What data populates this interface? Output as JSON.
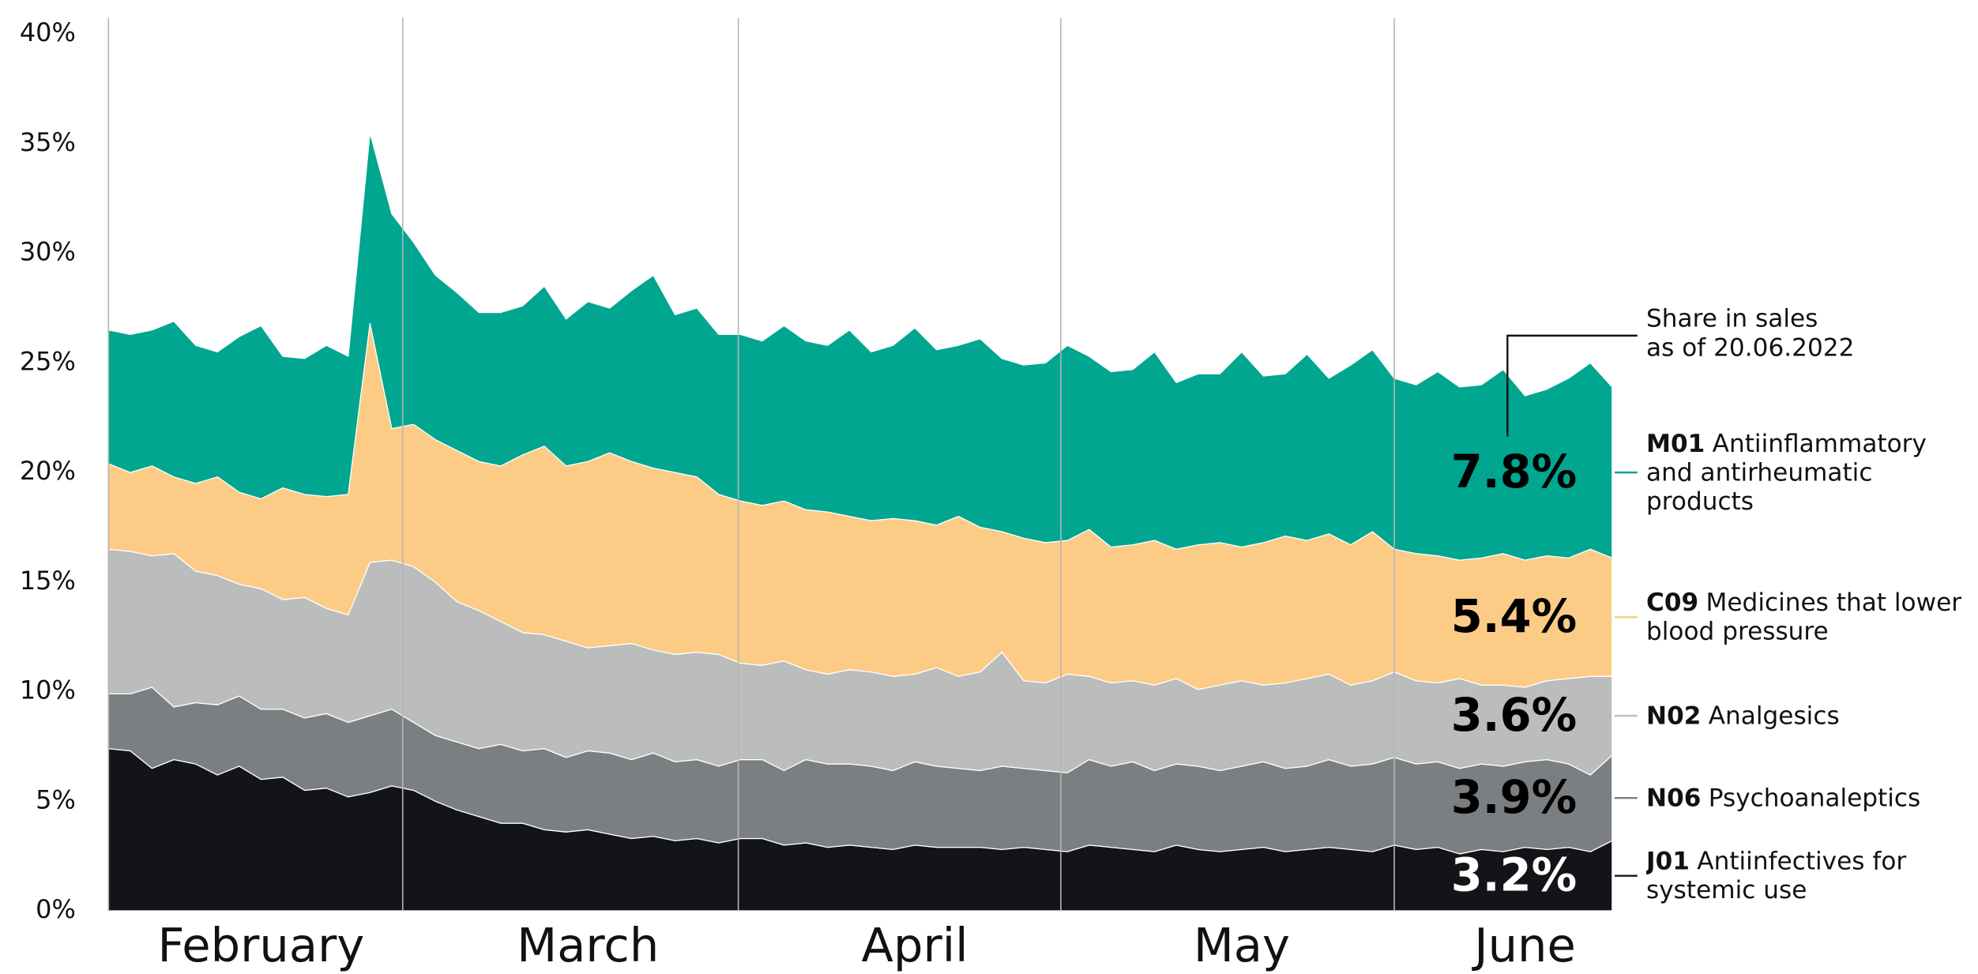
{
  "chart_data": {
    "type": "stacked_area",
    "categories": [
      null,
      null,
      null,
      null,
      null,
      null,
      null,
      "February",
      null,
      null,
      null,
      null,
      null,
      null,
      null,
      null,
      null,
      null,
      null,
      null,
      null,
      null,
      "March",
      null,
      null,
      null,
      null,
      null,
      null,
      null,
      null,
      null,
      null,
      null,
      null,
      null,
      null,
      "April",
      null,
      null,
      null,
      null,
      null,
      null,
      null,
      null,
      null,
      null,
      null,
      null,
      null,
      null,
      "May",
      null,
      null,
      null,
      null,
      null,
      null,
      null,
      null,
      null,
      null,
      null,
      null,
      "June",
      null,
      null,
      null,
      null
    ],
    "ylim": [
      0,
      40
    ],
    "yticks": [
      {
        "value": 0,
        "label": "0%"
      },
      {
        "value": 5,
        "label": "5%"
      },
      {
        "value": 10,
        "label": "10%"
      },
      {
        "value": 15,
        "label": "15%"
      },
      {
        "value": 20,
        "label": "20%"
      },
      {
        "value": 25,
        "label": "25%"
      },
      {
        "value": 30,
        "label": "30%"
      },
      {
        "value": 35,
        "label": "35%"
      },
      {
        "value": 40,
        "label": "40%"
      }
    ],
    "annotation": [
      "Share in sales",
      "as of 20.06.2022"
    ],
    "series": [
      {
        "code": "J01",
        "name": "Antiinfectives for systemic use",
        "color": "#121417",
        "values": [
          7.4,
          7.3,
          6.5,
          6.9,
          6.7,
          6.2,
          6.6,
          6.0,
          6.1,
          5.5,
          5.6,
          5.2,
          5.4,
          5.7,
          5.5,
          5.0,
          4.6,
          4.3,
          4.0,
          4.0,
          3.7,
          3.6,
          3.7,
          3.5,
          3.3,
          3.4,
          3.2,
          3.3,
          3.1,
          3.3,
          3.3,
          3.0,
          3.1,
          2.9,
          3.0,
          2.9,
          2.8,
          3.0,
          2.9,
          2.9,
          2.9,
          2.8,
          2.9,
          2.8,
          2.7,
          3.0,
          2.9,
          2.8,
          2.7,
          3.0,
          2.8,
          2.7,
          2.8,
          2.9,
          2.7,
          2.8,
          2.9,
          2.8,
          2.7,
          3.0,
          2.8,
          2.9,
          2.6,
          2.8,
          2.7,
          2.9,
          2.8,
          2.9,
          2.7,
          3.2
        ],
        "value_labels": {
          "69": "3.2%"
        }
      },
      {
        "code": "N06",
        "name": "Psychoanaleptics",
        "color": "#7c7f81",
        "values": [
          2.5,
          2.6,
          3.7,
          2.4,
          2.8,
          3.2,
          3.2,
          3.2,
          3.1,
          3.3,
          3.4,
          3.4,
          3.5,
          3.5,
          3.1,
          3.0,
          3.1,
          3.1,
          3.6,
          3.3,
          3.7,
          3.4,
          3.6,
          3.7,
          3.6,
          3.8,
          3.6,
          3.6,
          3.5,
          3.6,
          3.6,
          3.4,
          3.8,
          3.8,
          3.7,
          3.7,
          3.6,
          3.8,
          3.7,
          3.6,
          3.5,
          3.8,
          3.6,
          3.6,
          3.6,
          3.9,
          3.7,
          4.0,
          3.7,
          3.7,
          3.8,
          3.7,
          3.8,
          3.9,
          3.8,
          3.8,
          4.0,
          3.8,
          4.0,
          4.0,
          3.9,
          3.9,
          3.9,
          3.9,
          3.9,
          3.9,
          4.1,
          3.8,
          3.5,
          3.9
        ],
        "value_labels": {
          "69": "3.9%"
        }
      },
      {
        "code": "N02",
        "name": "Analgesics",
        "color": "#bbbcbc",
        "values": [
          6.6,
          6.5,
          6.0,
          7.0,
          6.0,
          5.9,
          5.1,
          5.5,
          5.0,
          5.5,
          4.8,
          4.9,
          7.0,
          6.8,
          7.1,
          7.0,
          6.4,
          6.3,
          5.6,
          5.4,
          5.2,
          5.3,
          4.7,
          4.9,
          5.3,
          4.7,
          4.9,
          4.9,
          5.1,
          4.4,
          4.3,
          5.0,
          4.1,
          4.1,
          4.3,
          4.3,
          4.3,
          4.0,
          4.5,
          4.2,
          4.5,
          5.2,
          4.0,
          4.0,
          4.5,
          3.8,
          3.8,
          3.7,
          3.9,
          3.9,
          3.5,
          3.9,
          3.9,
          3.5,
          3.9,
          4.0,
          3.9,
          3.7,
          3.8,
          3.9,
          3.8,
          3.6,
          4.1,
          3.6,
          3.7,
          3.4,
          3.6,
          3.9,
          4.5,
          3.6
        ],
        "value_labels": {
          "69": "3.6%"
        }
      },
      {
        "code": "C09",
        "name": "Medicines that lower blood pressure",
        "color": "#fccb85",
        "values": [
          3.9,
          3.6,
          4.1,
          3.5,
          4.0,
          4.5,
          4.2,
          4.1,
          5.1,
          4.7,
          5.1,
          5.5,
          10.9,
          6.0,
          6.5,
          6.5,
          6.9,
          6.8,
          7.1,
          8.1,
          8.6,
          8.0,
          8.5,
          8.8,
          8.3,
          8.3,
          8.3,
          8.0,
          7.3,
          7.4,
          7.3,
          7.3,
          7.3,
          7.4,
          7.0,
          6.9,
          7.2,
          7.0,
          6.5,
          7.3,
          6.6,
          5.5,
          6.5,
          6.4,
          6.1,
          6.7,
          6.2,
          6.2,
          6.6,
          5.9,
          6.6,
          6.5,
          6.1,
          6.5,
          6.7,
          6.3,
          6.4,
          6.4,
          6.8,
          5.6,
          5.8,
          5.8,
          5.4,
          5.8,
          6.0,
          5.8,
          5.7,
          5.5,
          5.8,
          5.4
        ],
        "value_labels": {
          "69": "5.4%"
        }
      },
      {
        "code": "M01",
        "name": "Antiinflammatory and antirheumatic products",
        "color": "#00a690",
        "values": [
          6.1,
          6.3,
          6.2,
          7.1,
          6.3,
          5.7,
          7.1,
          7.9,
          6.0,
          6.2,
          6.9,
          6.3,
          8.7,
          9.8,
          8.3,
          7.5,
          7.2,
          6.8,
          7.0,
          6.8,
          7.3,
          6.7,
          7.3,
          6.6,
          7.8,
          8.8,
          7.2,
          7.7,
          7.3,
          7.6,
          7.5,
          8.0,
          7.7,
          7.6,
          8.5,
          7.7,
          7.9,
          8.8,
          8.0,
          7.8,
          8.6,
          7.9,
          7.9,
          8.2,
          8.9,
          7.9,
          8.0,
          8.0,
          8.6,
          7.6,
          7.8,
          7.7,
          8.9,
          7.6,
          7.4,
          8.5,
          7.1,
          8.2,
          8.3,
          7.8,
          7.7,
          8.4,
          7.9,
          7.9,
          8.4,
          7.5,
          7.6,
          8.2,
          8.5,
          7.8
        ],
        "value_labels": {
          "69": "7.8%"
        }
      }
    ]
  }
}
